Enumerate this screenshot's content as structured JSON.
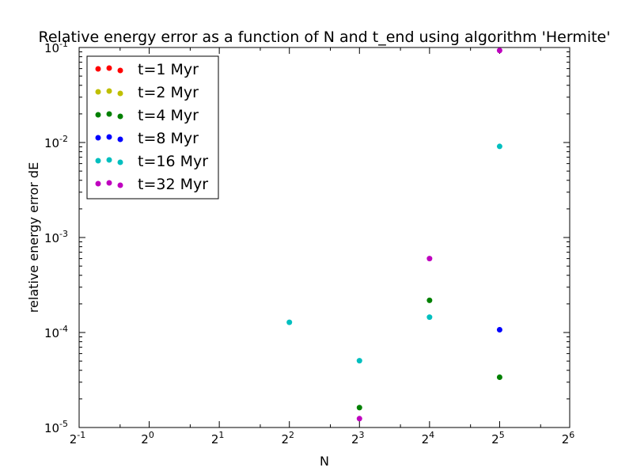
{
  "chart_data": {
    "type": "scatter",
    "title": "Relative energy error as a function of N and t_end using algorithm 'Hermite'",
    "xlabel": "N",
    "ylabel": "relative energy error dE",
    "x_scale": "log2",
    "y_scale": "log10",
    "xlim": [
      0.5,
      64
    ],
    "ylim": [
      1e-05,
      0.1
    ],
    "x_ticks": [
      {
        "base": "2",
        "exp": "-1",
        "value": 0.5
      },
      {
        "base": "2",
        "exp": "0",
        "value": 1
      },
      {
        "base": "2",
        "exp": "1",
        "value": 2
      },
      {
        "base": "2",
        "exp": "2",
        "value": 4
      },
      {
        "base": "2",
        "exp": "3",
        "value": 8
      },
      {
        "base": "2",
        "exp": "4",
        "value": 16
      },
      {
        "base": "2",
        "exp": "5",
        "value": 32
      },
      {
        "base": "2",
        "exp": "6",
        "value": 64
      }
    ],
    "y_ticks": [
      {
        "base": "10",
        "exp": "-5",
        "value": 1e-05
      },
      {
        "base": "10",
        "exp": "-4",
        "value": 0.0001
      },
      {
        "base": "10",
        "exp": "-3",
        "value": 0.001
      },
      {
        "base": "10",
        "exp": "-2",
        "value": 0.01
      },
      {
        "base": "10",
        "exp": "-1",
        "value": 0.1
      }
    ],
    "grid": false,
    "legend_position": "top-left",
    "series": [
      {
        "name": "t=1 Myr",
        "color": "#ff0000",
        "points": []
      },
      {
        "name": "t=2 Myr",
        "color": "#bfbf00",
        "points": []
      },
      {
        "name": "t=4 Myr",
        "color": "#008000",
        "points": [
          {
            "x": 8,
            "y": 1.62e-05
          },
          {
            "x": 16,
            "y": 0.000218
          },
          {
            "x": 32,
            "y": 3.38e-05
          }
        ]
      },
      {
        "name": "t=8 Myr",
        "color": "#0000ff",
        "points": [
          {
            "x": 32,
            "y": 0.000107
          }
        ]
      },
      {
        "name": "t=16 Myr",
        "color": "#00bfbf",
        "points": [
          {
            "x": 4,
            "y": 0.000128
          },
          {
            "x": 8,
            "y": 5.05e-05
          },
          {
            "x": 16,
            "y": 0.000145
          },
          {
            "x": 32,
            "y": 0.0091
          }
        ]
      },
      {
        "name": "t=32 Myr",
        "color": "#bf00bf",
        "points": [
          {
            "x": 8,
            "y": 1.24e-05
          },
          {
            "x": 16,
            "y": 0.0006
          },
          {
            "x": 32,
            "y": 0.093
          }
        ]
      }
    ]
  }
}
